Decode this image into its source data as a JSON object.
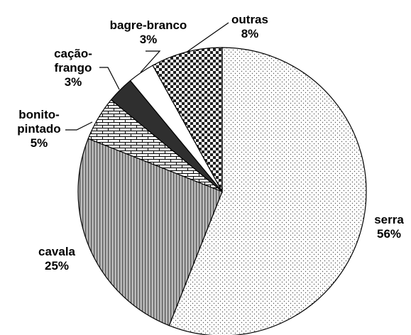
{
  "chart_data": {
    "type": "pie",
    "categories": [
      "serra",
      "cavala",
      "bonito-pintado",
      "cação-frango",
      "bagre-branco",
      "outras"
    ],
    "values": [
      56,
      25,
      5,
      3,
      3,
      8
    ],
    "value_labels": [
      "56%",
      "25%",
      "5%",
      "3%",
      "3%",
      "8%"
    ]
  }
}
